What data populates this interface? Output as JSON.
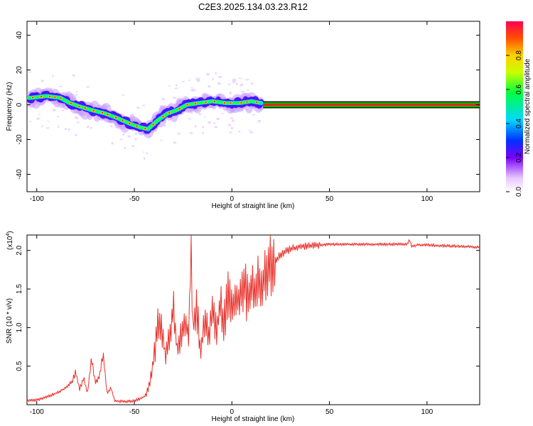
{
  "title": "C2E3.2025.134.03.23.R12",
  "chart_data": [
    {
      "type": "heatmap",
      "xlabel": "Height of straight line (km)",
      "ylabel": "Frequency (Hz)",
      "xlim": [
        -105,
        127
      ],
      "ylim": [
        -50,
        48
      ],
      "xticks": [
        -100,
        -50,
        0,
        50,
        100
      ],
      "yticks": [
        -40,
        -20,
        0,
        20,
        40
      ],
      "colorbar": {
        "label": "Normalized spectral amplitude",
        "range": [
          0,
          1
        ],
        "ticks": [
          0.0,
          0.2,
          0.4,
          0.6,
          0.8
        ],
        "tick_labels": [
          "0.0",
          "0.2",
          "0.4",
          "0.6",
          "0.8"
        ]
      },
      "ridge": {
        "x": [
          -103,
          -95,
          -88,
          -83,
          -78,
          -72,
          -65,
          -58,
          -52,
          -47,
          -43,
          -38,
          -33,
          -28,
          -23,
          -17,
          -10,
          -3,
          4,
          10,
          15
        ],
        "y": [
          4,
          5,
          4,
          1,
          -1,
          -3,
          -5,
          -8,
          -11,
          -13,
          -14,
          -9,
          -5,
          -3,
          0,
          1,
          2,
          1,
          1,
          2,
          1
        ]
      },
      "constant_line": {
        "x_start": 16,
        "x_end": 127,
        "y": 0,
        "amplitude": 1.0
      },
      "colors": {
        "band_edge": "#000000",
        "band_inner": "#00b800",
        "band_core": "#ff1a1a"
      }
    },
    {
      "type": "line",
      "xlabel": "Height of straight line (km)",
      "ylabel": "SNR (10 * v/v)",
      "multiplier": "(x10",
      "multiplier_exp": "4",
      "multiplier_close": ")",
      "xlim": [
        -105,
        127
      ],
      "ylim": [
        0,
        2.2
      ],
      "xticks": [
        -100,
        -50,
        0,
        50,
        100
      ],
      "yticks": [
        0.5,
        1.0,
        1.5,
        2.0
      ],
      "ytick_labels": [
        "0.5",
        "1.0",
        "1.5",
        "2.0"
      ],
      "series": [
        {
          "color": "#e8302a",
          "x": [
            -105,
            -100,
            -95,
            -90,
            -85,
            -82,
            -80,
            -78,
            -76,
            -74,
            -72,
            -70,
            -68,
            -66,
            -64,
            -62,
            -60,
            -55,
            -50,
            -47,
            -44,
            -42,
            -40,
            -38,
            -36,
            -34,
            -32,
            -30,
            -28,
            -26,
            -24,
            -22,
            -21,
            -20,
            -18,
            -16,
            -14,
            -12,
            -10,
            -8,
            -6,
            -4,
            -2,
            0,
            2,
            4,
            6,
            8,
            10,
            12,
            14,
            16,
            18,
            20,
            25,
            30,
            35,
            40,
            50,
            60,
            70,
            80,
            90,
            91,
            92,
            95,
            100,
            110,
            120,
            127
          ],
          "y": [
            0.05,
            0.06,
            0.1,
            0.15,
            0.22,
            0.3,
            0.42,
            0.2,
            0.35,
            0.15,
            0.6,
            0.28,
            0.35,
            0.68,
            0.15,
            0.22,
            0.05,
            0.04,
            0.05,
            0.08,
            0.12,
            0.3,
            0.6,
            1.0,
            1.05,
            0.6,
            0.9,
            1.25,
            0.7,
            0.9,
            1.1,
            0.9,
            2.08,
            1.0,
            1.3,
            0.65,
            1.15,
            0.9,
            1.25,
            0.95,
            1.3,
            1.05,
            1.45,
            1.2,
            1.4,
            1.3,
            1.6,
            1.35,
            1.55,
            1.45,
            1.65,
            1.55,
            1.75,
            1.8,
            1.95,
            2.02,
            2.05,
            2.06,
            2.08,
            2.08,
            2.08,
            2.08,
            2.08,
            2.15,
            2.05,
            2.07,
            2.07,
            2.06,
            2.05,
            2.04
          ]
        }
      ]
    }
  ]
}
